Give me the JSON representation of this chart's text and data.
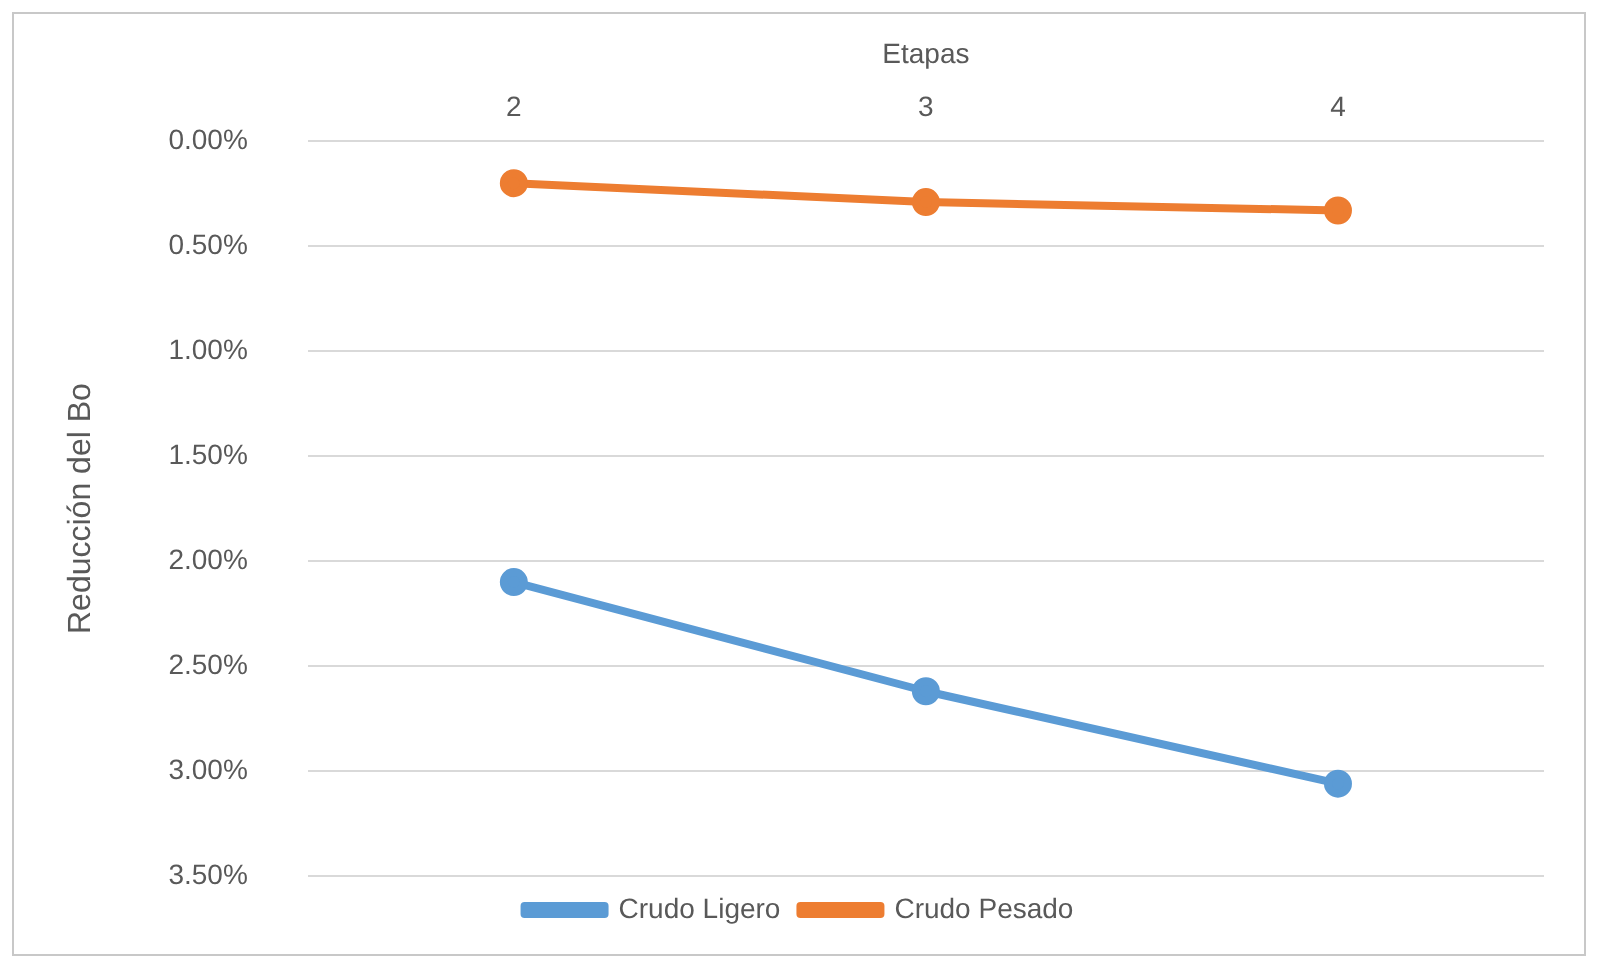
{
  "chart_data": {
    "type": "line",
    "xlabel": "Etapas",
    "ylabel": "Reducción del Bo",
    "categories": [
      "2",
      "3",
      "4"
    ],
    "series": [
      {
        "name": "Crudo Ligero",
        "color": "#5b9bd5",
        "values": [
          2.1,
          2.62,
          3.06
        ]
      },
      {
        "name": "Crudo Pesado",
        "color": "#ed7d31",
        "values": [
          0.2,
          0.29,
          0.33
        ]
      }
    ],
    "ylim": [
      3.5,
      0
    ],
    "yticks": [
      {
        "value": 0,
        "label": "0.00%"
      },
      {
        "value": 0.5,
        "label": "0.50%"
      },
      {
        "value": 1,
        "label": "1.00%"
      },
      {
        "value": 1.5,
        "label": "1.50%"
      },
      {
        "value": 2,
        "label": "2.00%"
      },
      {
        "value": 2.5,
        "label": "2.50%"
      },
      {
        "value": 3,
        "label": "3.00%"
      },
      {
        "value": 3.5,
        "label": "3.50%"
      }
    ],
    "grid": "y",
    "legend": "bottom",
    "marker": "circle",
    "line_style": "solid"
  }
}
